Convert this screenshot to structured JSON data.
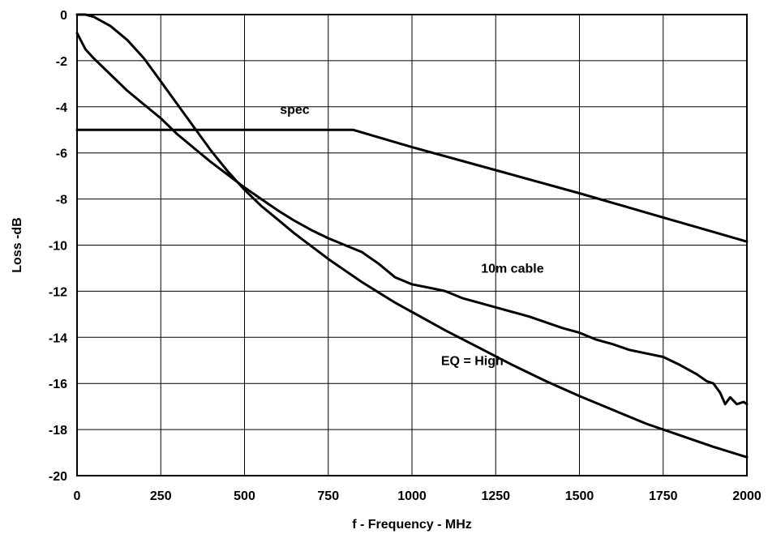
{
  "chart_data": {
    "type": "line",
    "title": "",
    "xlabel": "f - Frequency - MHz",
    "ylabel": "Loss -dB",
    "xlim": [
      0,
      2000
    ],
    "ylim": [
      -20,
      0
    ],
    "xticks": [
      0,
      250,
      500,
      750,
      1000,
      1250,
      1500,
      1750,
      2000
    ],
    "yticks": [
      0,
      -2,
      -4,
      -6,
      -8,
      -10,
      -12,
      -14,
      -16,
      -18,
      -20
    ],
    "grid": true,
    "legend": "none",
    "series": [
      {
        "name": "spec",
        "x": [
          0,
          825,
          1000,
          1250,
          1500,
          1750,
          2000
        ],
        "y": [
          -5.0,
          -5.0,
          -5.75,
          -6.75,
          -7.75,
          -8.8,
          -9.85
        ]
      },
      {
        "name": "10m cable",
        "x": [
          0,
          25,
          50,
          100,
          150,
          200,
          250,
          300,
          350,
          400,
          450,
          500,
          550,
          600,
          650,
          700,
          750,
          800,
          850,
          900,
          950,
          1000,
          1070,
          1100,
          1150,
          1200,
          1250,
          1300,
          1350,
          1400,
          1450,
          1500,
          1550,
          1600,
          1650,
          1700,
          1750,
          1800,
          1850,
          1880,
          1900,
          1920,
          1935,
          1950,
          1970,
          1990,
          2000
        ],
        "y": [
          -0.8,
          -1.5,
          -1.9,
          -2.6,
          -3.3,
          -3.9,
          -4.5,
          -5.2,
          -5.8,
          -6.4,
          -6.95,
          -7.5,
          -8.0,
          -8.5,
          -8.95,
          -9.35,
          -9.7,
          -10.0,
          -10.3,
          -10.8,
          -11.4,
          -11.7,
          -11.9,
          -12.0,
          -12.3,
          -12.5,
          -12.7,
          -12.9,
          -13.1,
          -13.35,
          -13.6,
          -13.8,
          -14.1,
          -14.3,
          -14.55,
          -14.7,
          -14.85,
          -15.2,
          -15.6,
          -15.9,
          -16.0,
          -16.4,
          -16.9,
          -16.6,
          -16.9,
          -16.8,
          -16.9
        ]
      },
      {
        "name": "EQ = High",
        "x": [
          0,
          25,
          50,
          75,
          100,
          150,
          200,
          250,
          300,
          350,
          400,
          450,
          500,
          550,
          600,
          650,
          700,
          750,
          800,
          850,
          900,
          950,
          1000,
          1100,
          1200,
          1300,
          1400,
          1500,
          1600,
          1700,
          1800,
          1900,
          2000
        ],
        "y": [
          0,
          0,
          -0.1,
          -0.3,
          -0.5,
          -1.1,
          -1.9,
          -2.9,
          -3.9,
          -4.9,
          -5.9,
          -6.8,
          -7.6,
          -8.3,
          -8.9,
          -9.5,
          -10.05,
          -10.6,
          -11.1,
          -11.6,
          -12.05,
          -12.5,
          -12.9,
          -13.7,
          -14.45,
          -15.2,
          -15.9,
          -16.55,
          -17.15,
          -17.75,
          -18.25,
          -18.75,
          -19.2
        ]
      }
    ],
    "annotations": [
      {
        "text": "spec",
        "x": 650,
        "y": -4.3
      },
      {
        "text": "10m cable",
        "x": 1300,
        "y": -11.2
      },
      {
        "text": "EQ = High",
        "x": 1180,
        "y": -15.2
      }
    ]
  }
}
